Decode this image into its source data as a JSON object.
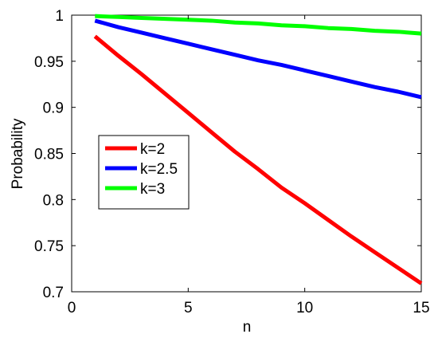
{
  "chart_data": {
    "type": "line",
    "title": "",
    "xlabel": "n",
    "ylabel": "Probability",
    "xlim": [
      0,
      15
    ],
    "ylim": [
      0.7,
      1
    ],
    "xticks": [
      0,
      5,
      10,
      15
    ],
    "yticks": [
      0.7,
      0.75,
      0.8,
      0.85,
      0.9,
      0.95,
      1
    ],
    "xtick_labels": [
      "0",
      "5",
      "10",
      "15"
    ],
    "ytick_labels": [
      "0.7",
      "0.75",
      "0.8",
      "0.85",
      "0.9",
      "0.95",
      "1"
    ],
    "grid": false,
    "legend_placement": "center-left",
    "x": [
      1,
      2,
      3,
      4,
      5,
      6,
      7,
      8,
      9,
      10,
      11,
      12,
      13,
      14,
      15
    ],
    "series": [
      {
        "name": "k=2",
        "color": "#ff0000",
        "values": [
          0.977,
          0.956,
          0.936,
          0.915,
          0.894,
          0.873,
          0.852,
          0.833,
          0.813,
          0.796,
          0.778,
          0.76,
          0.743,
          0.726,
          0.709
        ]
      },
      {
        "name": "k=2.5",
        "color": "#0000ff",
        "values": [
          0.994,
          0.987,
          0.981,
          0.975,
          0.969,
          0.963,
          0.957,
          0.951,
          0.946,
          0.94,
          0.934,
          0.928,
          0.922,
          0.917,
          0.911
        ]
      },
      {
        "name": "k=3",
        "color": "#00ff00",
        "values": [
          0.999,
          0.998,
          0.997,
          0.996,
          0.995,
          0.994,
          0.992,
          0.991,
          0.989,
          0.988,
          0.986,
          0.985,
          0.983,
          0.982,
          0.98
        ]
      }
    ]
  }
}
